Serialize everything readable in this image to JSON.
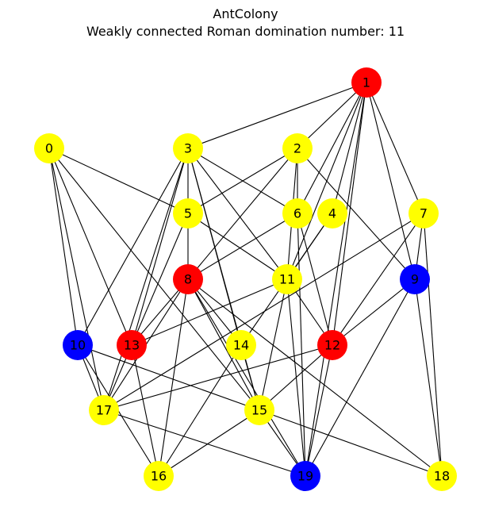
{
  "figure": {
    "title": "AntColony",
    "subtitle": "Weakly connected Roman domination number: 11"
  },
  "colors": {
    "red": "#ff0000",
    "yellow": "#ffff00",
    "blue": "#0000ff",
    "edge": "#000000"
  },
  "graph": {
    "nodes": [
      {
        "id": 0,
        "label": "0",
        "color": "yellow"
      },
      {
        "id": 1,
        "label": "1",
        "color": "red"
      },
      {
        "id": 2,
        "label": "2",
        "color": "yellow"
      },
      {
        "id": 3,
        "label": "3",
        "color": "yellow"
      },
      {
        "id": 4,
        "label": "4",
        "color": "yellow"
      },
      {
        "id": 5,
        "label": "5",
        "color": "yellow"
      },
      {
        "id": 6,
        "label": "6",
        "color": "yellow"
      },
      {
        "id": 7,
        "label": "7",
        "color": "yellow"
      },
      {
        "id": 8,
        "label": "8",
        "color": "red"
      },
      {
        "id": 9,
        "label": "9",
        "color": "blue"
      },
      {
        "id": 10,
        "label": "10",
        "color": "blue"
      },
      {
        "id": 11,
        "label": "11",
        "color": "yellow"
      },
      {
        "id": 12,
        "label": "12",
        "color": "red"
      },
      {
        "id": 13,
        "label": "13",
        "color": "red"
      },
      {
        "id": 14,
        "label": "14",
        "color": "yellow"
      },
      {
        "id": 15,
        "label": "15",
        "color": "yellow"
      },
      {
        "id": 16,
        "label": "16",
        "color": "yellow"
      },
      {
        "id": 17,
        "label": "17",
        "color": "yellow"
      },
      {
        "id": 18,
        "label": "18",
        "color": "yellow"
      },
      {
        "id": 19,
        "label": "19",
        "color": "blue"
      }
    ],
    "edges": [
      [
        1,
        3
      ],
      [
        1,
        2
      ],
      [
        1,
        6
      ],
      [
        1,
        4
      ],
      [
        1,
        11
      ],
      [
        1,
        7
      ],
      [
        1,
        9
      ],
      [
        1,
        12
      ],
      [
        1,
        19
      ],
      [
        0,
        5
      ],
      [
        0,
        10
      ],
      [
        0,
        17
      ],
      [
        0,
        13
      ],
      [
        0,
        15
      ],
      [
        3,
        5
      ],
      [
        3,
        6
      ],
      [
        3,
        11
      ],
      [
        3,
        10
      ],
      [
        3,
        13
      ],
      [
        3,
        17
      ],
      [
        3,
        14
      ],
      [
        3,
        15
      ],
      [
        2,
        5
      ],
      [
        2,
        6
      ],
      [
        2,
        9
      ],
      [
        2,
        8
      ],
      [
        2,
        11
      ],
      [
        5,
        11
      ],
      [
        5,
        8
      ],
      [
        5,
        13
      ],
      [
        6,
        8
      ],
      [
        6,
        12
      ],
      [
        6,
        19
      ],
      [
        4,
        11
      ],
      [
        4,
        14
      ],
      [
        7,
        12
      ],
      [
        7,
        17
      ],
      [
        7,
        9
      ],
      [
        7,
        18
      ],
      [
        8,
        13
      ],
      [
        8,
        14
      ],
      [
        8,
        15
      ],
      [
        8,
        16
      ],
      [
        8,
        18
      ],
      [
        8,
        19
      ],
      [
        8,
        17
      ],
      [
        9,
        12
      ],
      [
        9,
        18
      ],
      [
        9,
        19
      ],
      [
        10,
        17
      ],
      [
        10,
        16
      ],
      [
        10,
        15
      ],
      [
        11,
        12
      ],
      [
        11,
        13
      ],
      [
        11,
        15
      ],
      [
        11,
        19
      ],
      [
        12,
        17
      ],
      [
        12,
        15
      ],
      [
        12,
        19
      ],
      [
        13,
        16
      ],
      [
        13,
        17
      ],
      [
        14,
        16
      ],
      [
        14,
        15
      ],
      [
        15,
        16
      ],
      [
        15,
        18
      ],
      [
        15,
        19
      ],
      [
        17,
        19
      ]
    ]
  }
}
